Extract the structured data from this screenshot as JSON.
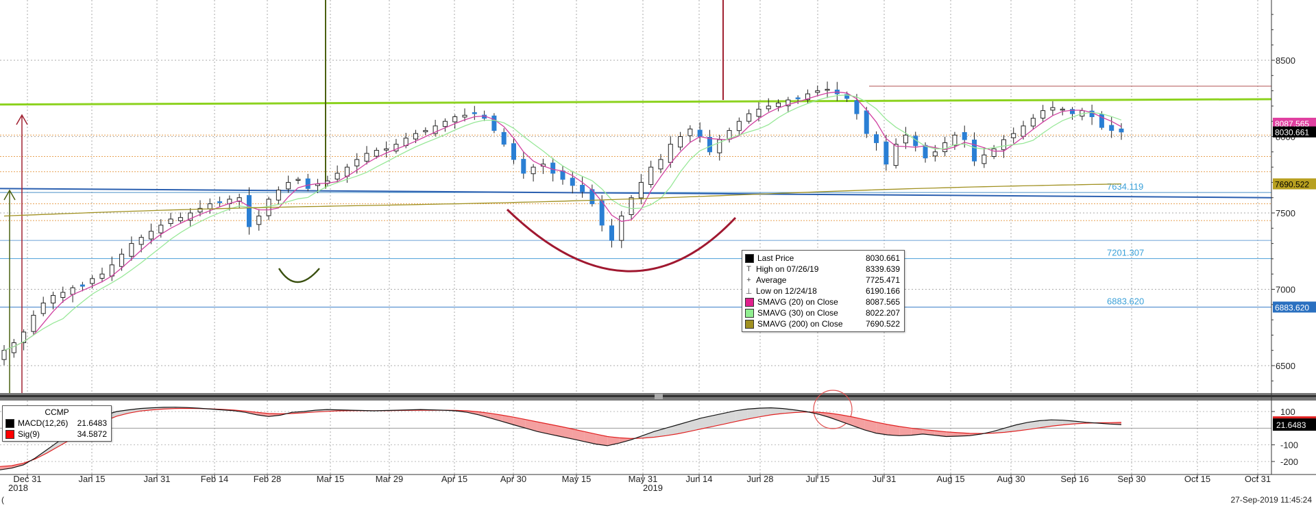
{
  "chart_data": [
    {
      "type": "candlestick",
      "symbol": "CCMP",
      "y_ticks": [
        6500,
        7000,
        7500,
        8000,
        8500
      ],
      "ylim": [
        6250,
        8850
      ],
      "x_ticks": [
        "Dec 31",
        "Jan 15",
        "Jan 31",
        "Feb 14",
        "Feb 28",
        "Mar 15",
        "Mar 29",
        "Apr 15",
        "Apr 30",
        "May 15",
        "May 31",
        "Jun 14",
        "Jun 28",
        "Jul 15",
        "Jul 31",
        "Aug 15",
        "Aug 30",
        "Sep 16",
        "Sep 30",
        "Oct 15",
        "Oct 31"
      ],
      "year_labels": [
        "2018",
        "2019"
      ],
      "closes": [
        6600,
        6650,
        6720,
        6830,
        6910,
        6960,
        6980,
        7010,
        7020,
        7070,
        7100,
        7160,
        7230,
        7300,
        7340,
        7380,
        7420,
        7460,
        7470,
        7500,
        7530,
        7560,
        7570,
        7590,
        7600,
        7410,
        7480,
        7590,
        7650,
        7700,
        7720,
        7660,
        7690,
        7710,
        7760,
        7800,
        7850,
        7890,
        7910,
        7920,
        7950,
        7990,
        8020,
        8040,
        8070,
        8100,
        8130,
        8140,
        8150,
        8120,
        8040,
        7950,
        7850,
        7760,
        7800,
        7820,
        7760,
        7720,
        7680,
        7640,
        7560,
        7420,
        7320,
        7480,
        7600,
        7700,
        7800,
        7850,
        7950,
        8000,
        8050,
        8000,
        7900,
        7980,
        8040,
        8100,
        8150,
        8180,
        8200,
        8220,
        8240,
        8250,
        8280,
        8300,
        8310,
        8280,
        8250,
        8150,
        8020,
        7960,
        7820,
        7950,
        8010,
        7940,
        7860,
        7900,
        7960,
        8010,
        7980,
        7840,
        7880,
        7920,
        7980,
        8020,
        8070,
        8120,
        8170,
        8190,
        8180,
        8150,
        8170,
        8130,
        8060,
        8040,
        8030
      ],
      "hlines": [
        {
          "value": 8330,
          "color": "#b05050"
        },
        {
          "value": 7634.119,
          "color": "#4a90c8",
          "label": "7634.119"
        },
        {
          "value": 7201.307,
          "color": "#4a9ed8",
          "label": "7201.307"
        },
        {
          "value": 6883.62,
          "color": "#3a7ec8",
          "label": "6883.620"
        },
        {
          "value": 7320,
          "color": "#6aa0d8"
        }
      ],
      "right_badges": [
        {
          "value": 8087.565,
          "text": "8087.565",
          "bg": "#e040a0",
          "fg": "#ffffff"
        },
        {
          "value": 8030.661,
          "text": "8030.661",
          "bg": "#000000",
          "fg": "#ffffff"
        },
        {
          "value": 7690.522,
          "text": "7690.522",
          "bg": "#b8a020",
          "fg": "#000000"
        },
        {
          "value": 6883.62,
          "text": "6883.620",
          "bg": "#2a70c0",
          "fg": "#ffffff"
        }
      ],
      "colors": {
        "up": "#2a7fd4",
        "down": "#2a7fd4",
        "sma20": "#d040a0",
        "sma30": "#98e898",
        "sma200": "#a09020",
        "trend_green": "#8cd21e",
        "trend_blue": "#2a5fb0",
        "arc": "#a01830",
        "fib": "#e8a050"
      },
      "legend": [
        {
          "label": "Last Price",
          "value": "8030.661",
          "swatch": "#000000"
        },
        {
          "label": "High on 07/26/19",
          "value": "8339.639",
          "glyph": "T"
        },
        {
          "label": "Average",
          "value": "7725.471",
          "glyph": "+"
        },
        {
          "label": "Low on 12/24/18",
          "value": "6190.166",
          "glyph": "⊥"
        },
        {
          "label": "SMAVG (20)  on Close",
          "value": "8087.565",
          "swatch": "#e0208c"
        },
        {
          "label": "SMAVG (30)  on Close",
          "value": "8022.207",
          "swatch": "#90ee90"
        },
        {
          "label": "SMAVG (200)  on Close",
          "value": "7690.522",
          "swatch": "#a09020"
        }
      ]
    },
    {
      "type": "line",
      "indicator": "MACD",
      "y_ticks": [
        100,
        -100,
        -200
      ],
      "ylim": [
        -260,
        150
      ],
      "legend_title": "CCMP",
      "legend": [
        {
          "label": "MACD(12,26)",
          "value": "21.6483",
          "swatch": "#000000"
        },
        {
          "label": "Sig(9)",
          "value": "34.5872",
          "swatch": "#ff0000"
        }
      ],
      "badge": {
        "text": "21.6483",
        "bg": "#000000",
        "fg": "#ffffff",
        "value": 21.6483
      },
      "macd": [
        -250,
        -240,
        -220,
        -180,
        -130,
        -80,
        -30,
        10,
        50,
        80,
        100,
        110,
        118,
        122,
        125,
        126,
        124,
        120,
        115,
        110,
        105,
        95,
        80,
        70,
        78,
        95,
        100,
        108,
        112,
        110,
        108,
        106,
        104,
        106,
        108,
        110,
        112,
        110,
        108,
        104,
        95,
        80,
        60,
        40,
        20,
        0,
        -20,
        -35,
        -50,
        -65,
        -80,
        -95,
        -105,
        -90,
        -70,
        -45,
        -20,
        0,
        20,
        40,
        60,
        75,
        90,
        105,
        115,
        120,
        122,
        118,
        110,
        100,
        85,
        65,
        40,
        15,
        -10,
        -30,
        -40,
        -45,
        -42,
        -35,
        -42,
        -50,
        -48,
        -45,
        -35,
        -20,
        0,
        20,
        35,
        45,
        50,
        48,
        42,
        35,
        30,
        25,
        21.6
      ],
      "signal": [
        -230,
        -225,
        -210,
        -185,
        -150,
        -110,
        -70,
        -30,
        10,
        45,
        72,
        90,
        103,
        110,
        115,
        118,
        119,
        118,
        116,
        113,
        109,
        103,
        95,
        88,
        86,
        88,
        92,
        97,
        101,
        104,
        105,
        105,
        105,
        105,
        106,
        107,
        108,
        108,
        108,
        107,
        104,
        98,
        89,
        78,
        66,
        52,
        38,
        24,
        10,
        -5,
        -20,
        -35,
        -50,
        -58,
        -62,
        -60,
        -54,
        -45,
        -34,
        -20,
        -5,
        10,
        25,
        40,
        55,
        68,
        80,
        88,
        94,
        97,
        96,
        90,
        80,
        67,
        52,
        36,
        22,
        10,
        0,
        -8,
        -15,
        -22,
        -27,
        -31,
        -32,
        -30,
        -25,
        -17,
        -8,
        2,
        12,
        20,
        26,
        30,
        32,
        33,
        34.6
      ]
    }
  ],
  "footer": {
    "year_left_mark": "(",
    "timestamp": "27-Sep-2019 11:45:24"
  }
}
